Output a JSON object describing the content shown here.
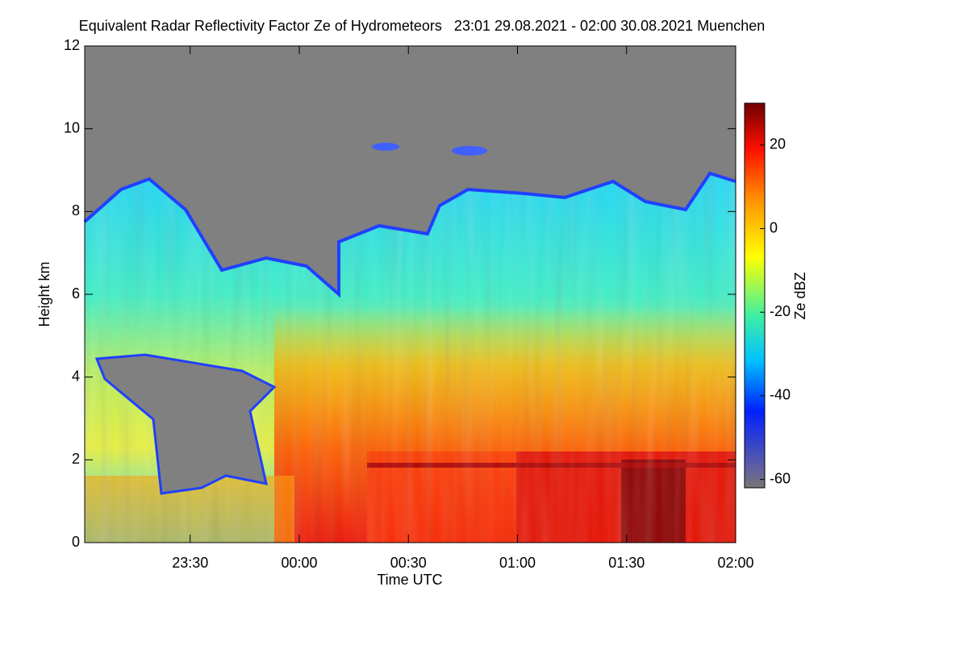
{
  "chart_data": {
    "type": "heatmap",
    "title": "Equivalent Radar Reflectivity Factor Ze of Hydrometeors   23:01 29.08.2021 - 02:00 30.08.2021 Muenchen",
    "xlabel": "Time UTC",
    "ylabel": "Height km",
    "zlabel": "Ze dBZ",
    "xlim": [
      1381,
      1560
    ],
    "xticks": [
      {
        "value": 1410,
        "label": "23:30"
      },
      {
        "value": 1440,
        "label": "00:00"
      },
      {
        "value": 1470,
        "label": "00:30"
      },
      {
        "value": 1500,
        "label": "01:00"
      },
      {
        "value": 1530,
        "label": "01:30"
      },
      {
        "value": 1560,
        "label": "02:00"
      }
    ],
    "ylim": [
      0,
      12
    ],
    "yticks": [
      0,
      2,
      4,
      6,
      8,
      10,
      12
    ],
    "zlim": [
      -62,
      30
    ],
    "zticks": [
      -60,
      -40,
      -20,
      0,
      20
    ]
  }
}
